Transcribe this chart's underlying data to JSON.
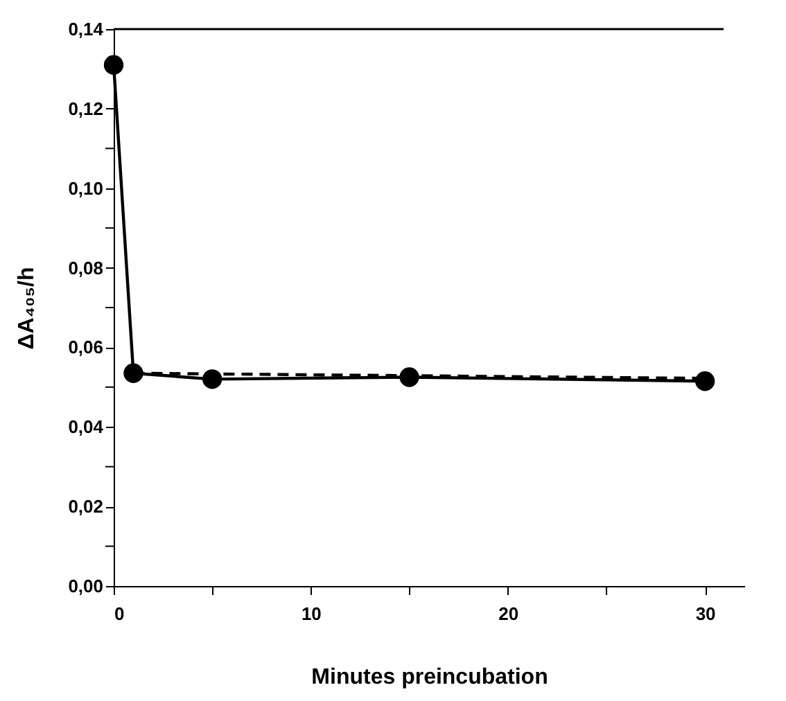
{
  "chart_data": {
    "type": "line",
    "xlabel": "Minutes   preincubation",
    "ylabel": "ΔA₄₀₅/h",
    "xlim": [
      0,
      32
    ],
    "xticks": [
      0,
      {
        "value": 5,
        "label": null
      },
      10,
      {
        "value": 15,
        "label": null
      },
      20,
      {
        "value": 25,
        "label": null
      },
      30
    ],
    "ylim": [
      0,
      0.14
    ],
    "yticks": [
      {
        "value": 0,
        "label": "0,00"
      },
      {
        "value": 0.01,
        "label": null
      },
      {
        "value": 0.02,
        "label": "0,02"
      },
      {
        "value": 0.03,
        "label": null
      },
      {
        "value": 0.04,
        "label": "0,04"
      },
      {
        "value": 0.05,
        "label": null
      },
      {
        "value": 0.06,
        "label": "0,06"
      },
      {
        "value": 0.07,
        "label": null
      },
      {
        "value": 0.08,
        "label": "0,08"
      },
      {
        "value": 0.09,
        "label": null
      },
      {
        "value": 0.1,
        "label": "0,10"
      },
      {
        "value": 0.11,
        "label": null
      },
      {
        "value": 0.12,
        "label": "0,12"
      },
      {
        "value": 0.13,
        "label": null
      },
      {
        "value": 0.14,
        "label": "0,14"
      }
    ],
    "series": [
      {
        "color": "#000000",
        "x": [
          0,
          1,
          5,
          15,
          30
        ],
        "values": [
          0.131,
          0.0535,
          0.052,
          0.0525,
          0.0515
        ],
        "marker": "circle",
        "line_style": "solid"
      },
      {
        "color": "#000000",
        "x": [
          1,
          30
        ],
        "values": [
          0.0535,
          0.0522
        ],
        "marker": "none",
        "line_style": "dashed"
      }
    ]
  }
}
